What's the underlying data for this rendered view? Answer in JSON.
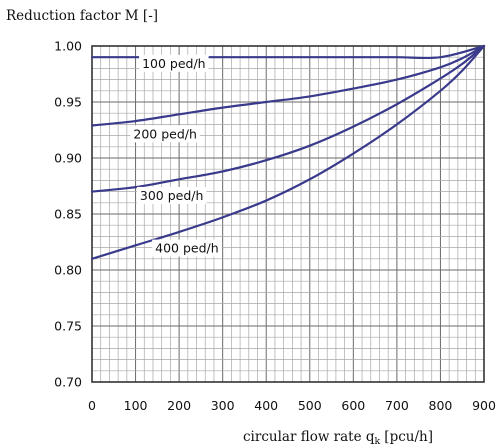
{
  "chart_data": {
    "type": "line",
    "title": "",
    "ylabel": "Reduction factor M [-]",
    "xlabel": "circular flow rate q_k [pcu/h]",
    "xlabel_main": "circular flow rate q",
    "xlabel_subscript": "k",
    "xlabel_unit": "[pcu/h]",
    "xlim": [
      0,
      900
    ],
    "ylim": [
      0.7,
      1.0
    ],
    "x_ticks": [
      0,
      100,
      200,
      300,
      400,
      500,
      600,
      700,
      800,
      900
    ],
    "y_ticks": [
      0.7,
      0.75,
      0.8,
      0.85,
      0.9,
      0.95,
      1.0
    ],
    "x_tick_labels": [
      "0",
      "100",
      "200",
      "300",
      "400",
      "500",
      "600",
      "700",
      "800",
      "900"
    ],
    "y_tick_labels": [
      "0.70",
      "0.75",
      "0.80",
      "0.85",
      "0.90",
      "0.95",
      "1.00"
    ],
    "grid": true,
    "line_color": "#3a3a8c",
    "series": [
      {
        "name": "100 ped/h",
        "x": [
          0,
          100,
          200,
          300,
          400,
          500,
          600,
          700,
          800,
          900
        ],
        "y": [
          0.99,
          0.99,
          0.99,
          0.99,
          0.99,
          0.99,
          0.99,
          0.99,
          0.99,
          1.0
        ]
      },
      {
        "name": "200 ped/h",
        "x": [
          0,
          100,
          200,
          300,
          400,
          500,
          600,
          700,
          800,
          850,
          900
        ],
        "y": [
          0.929,
          0.933,
          0.939,
          0.945,
          0.95,
          0.955,
          0.962,
          0.97,
          0.981,
          0.989,
          1.0
        ]
      },
      {
        "name": "300 ped/h",
        "x": [
          0,
          100,
          200,
          300,
          400,
          500,
          600,
          700,
          800,
          850,
          900
        ],
        "y": [
          0.87,
          0.874,
          0.881,
          0.888,
          0.898,
          0.911,
          0.928,
          0.948,
          0.971,
          0.984,
          1.0
        ]
      },
      {
        "name": "400 ped/h",
        "x": [
          0,
          100,
          200,
          300,
          400,
          500,
          600,
          700,
          800,
          850,
          900
        ],
        "y": [
          0.81,
          0.822,
          0.834,
          0.847,
          0.862,
          0.881,
          0.904,
          0.93,
          0.96,
          0.978,
          1.0
        ]
      }
    ],
    "annotations": [
      {
        "text": "100 ped/h",
        "x": 115,
        "y": 0.985
      },
      {
        "text": "200 ped/h",
        "x": 95,
        "y": 0.922
      },
      {
        "text": "300 ped/h",
        "x": 110,
        "y": 0.867
      },
      {
        "text": "400 ped/h",
        "x": 145,
        "y": 0.82
      }
    ]
  }
}
